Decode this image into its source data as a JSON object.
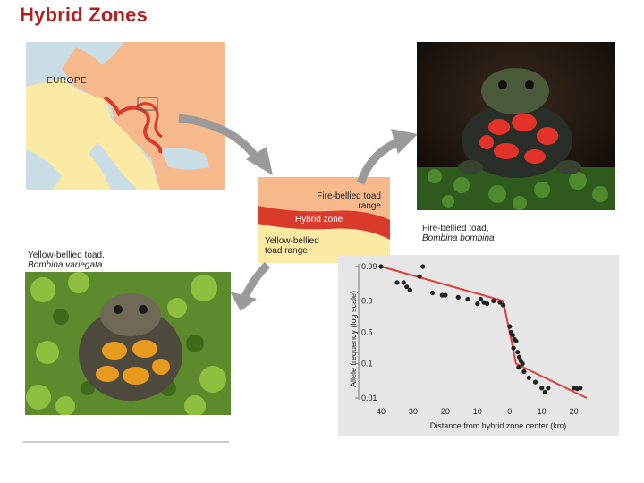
{
  "title": "Hybrid Zones",
  "map": {
    "region_label": "EUROPE",
    "colors": {
      "fire_bellied": "#f5b98c",
      "yellow_bellied": "#fbeaa3",
      "sea": "#c9dde6",
      "hybrid_zone": "#d93a2b"
    }
  },
  "zone_panel": {
    "fire_range_label": "Fire-bellied toad range",
    "hybrid_zone_label": "Hybrid zone",
    "yellow_range_label": "Yellow-bellied toad range"
  },
  "captions": {
    "fire_bellied_common": "Fire-bellied toad,",
    "fire_bellied_latin": "Bombina bombina",
    "yellow_bellied_common": "Yellow-bellied toad,",
    "yellow_bellied_latin": "Bombina variegata"
  },
  "photos": {
    "fire_bellied_photo": "fire-bellied-toad-photo",
    "yellow_bellied_photo": "yellow-bellied-toad-photo"
  },
  "chart_data": {
    "type": "scatter",
    "ylabel": "Allele frequency (log scale)",
    "xlabel": "Distance from hybrid zone center (km)",
    "x_ticks": [
      "40",
      "30",
      "20",
      "10",
      "0",
      "10",
      "20"
    ],
    "y_ticks": [
      "0.99",
      "0.9",
      "0.5",
      "0.1",
      "0.01"
    ],
    "y_scale": "log-odds",
    "marker_color": "#222222",
    "line_color": "#d9413a",
    "fit_line": [
      {
        "x": -40,
        "y": 0.99
      },
      {
        "x": -2,
        "y": 0.9
      },
      {
        "x": 0,
        "y": 0.5
      },
      {
        "x": 2,
        "y": 0.1
      },
      {
        "x": 24,
        "y": 0.01
      }
    ],
    "points": [
      {
        "x": -40,
        "y": 0.99
      },
      {
        "x": -35,
        "y": 0.97
      },
      {
        "x": -33,
        "y": 0.97
      },
      {
        "x": -32,
        "y": 0.96
      },
      {
        "x": -31,
        "y": 0.95
      },
      {
        "x": -28,
        "y": 0.98
      },
      {
        "x": -27,
        "y": 0.99
      },
      {
        "x": -24,
        "y": 0.94
      },
      {
        "x": -21,
        "y": 0.93
      },
      {
        "x": -20,
        "y": 0.93
      },
      {
        "x": -16,
        "y": 0.92
      },
      {
        "x": -13,
        "y": 0.91
      },
      {
        "x": -10,
        "y": 0.88
      },
      {
        "x": -9,
        "y": 0.91
      },
      {
        "x": -8,
        "y": 0.89
      },
      {
        "x": -7,
        "y": 0.88
      },
      {
        "x": -5,
        "y": 0.9
      },
      {
        "x": -3,
        "y": 0.89
      },
      {
        "x": -2,
        "y": 0.87
      },
      {
        "x": 0,
        "y": 0.6
      },
      {
        "x": 0.5,
        "y": 0.5
      },
      {
        "x": 1,
        "y": 0.45
      },
      {
        "x": 1.5,
        "y": 0.38
      },
      {
        "x": 2,
        "y": 0.35
      },
      {
        "x": 1.2,
        "y": 0.25
      },
      {
        "x": 2.5,
        "y": 0.2
      },
      {
        "x": 3,
        "y": 0.15
      },
      {
        "x": 4,
        "y": 0.1
      },
      {
        "x": 3.5,
        "y": 0.12
      },
      {
        "x": 2.8,
        "y": 0.08
      },
      {
        "x": 4.5,
        "y": 0.06
      },
      {
        "x": 6,
        "y": 0.04
      },
      {
        "x": 8,
        "y": 0.03
      },
      {
        "x": 10,
        "y": 0.02
      },
      {
        "x": 11,
        "y": 0.015
      },
      {
        "x": 12,
        "y": 0.02
      },
      {
        "x": 20,
        "y": 0.02
      },
      {
        "x": 21,
        "y": 0.019
      },
      {
        "x": 22,
        "y": 0.02
      }
    ]
  }
}
